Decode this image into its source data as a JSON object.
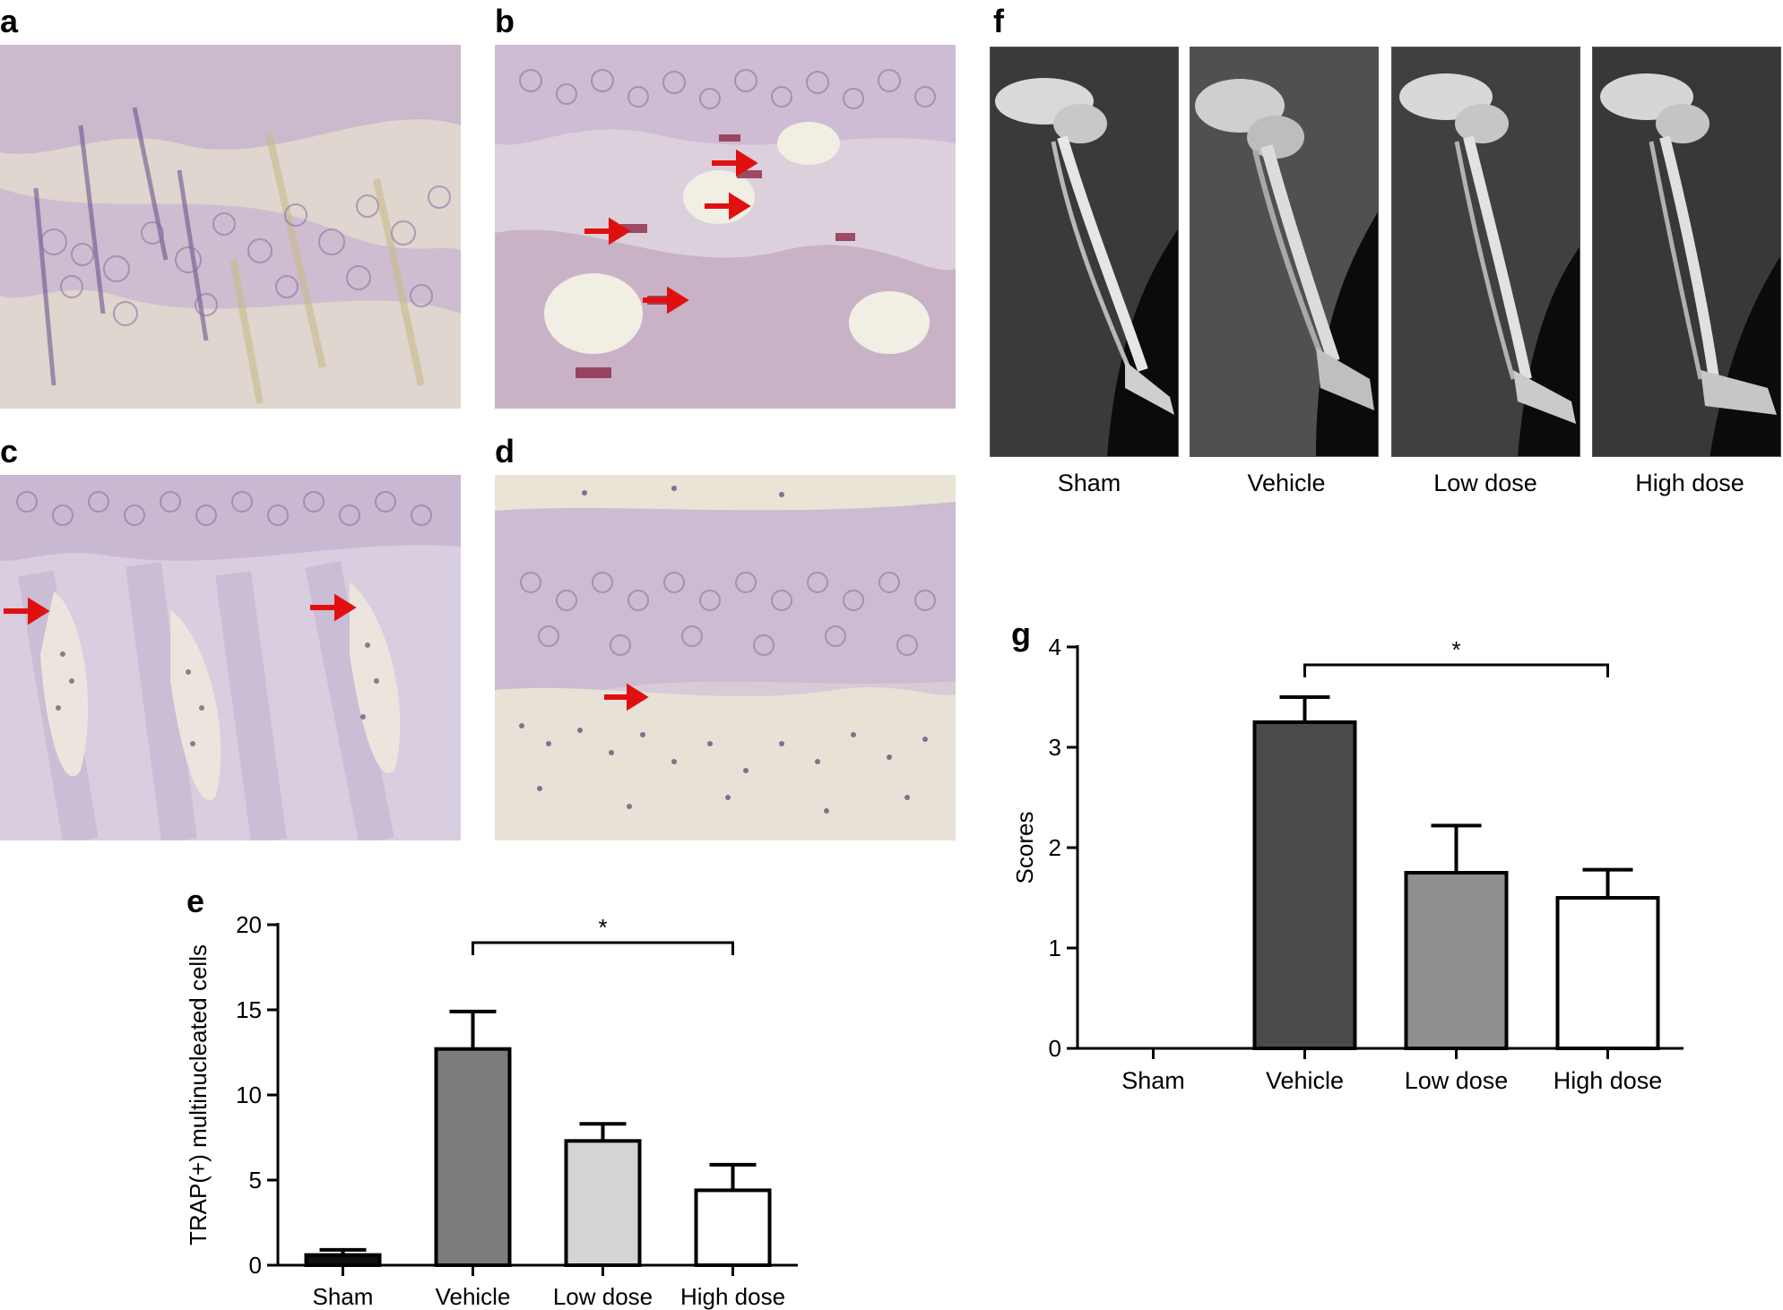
{
  "panels": {
    "a": {
      "label": "a"
    },
    "b": {
      "label": "b"
    },
    "c": {
      "label": "c"
    },
    "d": {
      "label": "d"
    },
    "e": {
      "label": "e"
    },
    "f": {
      "label": "f"
    },
    "g": {
      "label": "g"
    }
  },
  "xray_captions": [
    "Sham",
    "Vehicle",
    "Low dose",
    "High dose"
  ],
  "colors": {
    "stain_background": "#dfd2df",
    "stain_purple": "#8a6aa0",
    "arrow_red": "#e01010",
    "bar_dark": "#4a4a4a",
    "bar_mid": "#7b7b7b",
    "bar_gray": "#8f8f8f",
    "bar_light": "#d4d4d4",
    "bar_black": "#111111"
  },
  "chart_data": [
    {
      "id": "e",
      "type": "bar",
      "title": "",
      "ylabel": "TRAP(+) multinucleated cells",
      "xlabel": "",
      "categories": [
        "Sham",
        "Vehicle",
        "Low dose",
        "High dose"
      ],
      "values": [
        0.6,
        12.7,
        7.3,
        4.4
      ],
      "errors": [
        0.3,
        2.2,
        1.0,
        1.5
      ],
      "bar_colors": [
        "#111111",
        "#7b7b7b",
        "#d4d4d4",
        "#ffffff"
      ],
      "ylim": [
        0,
        20
      ],
      "yticks": [
        0,
        5,
        10,
        15,
        20
      ],
      "significance": {
        "from": "Vehicle",
        "to": "High dose",
        "label": "*"
      }
    },
    {
      "id": "g",
      "type": "bar",
      "title": "",
      "ylabel": "Scores",
      "xlabel": "",
      "categories": [
        "Sham",
        "Vehicle",
        "Low dose",
        "High dose"
      ],
      "values": [
        0,
        3.25,
        1.75,
        1.5
      ],
      "errors": [
        0,
        0.25,
        0.47,
        0.28
      ],
      "bar_colors": [
        "#ffffff",
        "#4a4a4a",
        "#8f8f8f",
        "#ffffff"
      ],
      "ylim": [
        0,
        4
      ],
      "yticks": [
        0,
        1,
        2,
        3,
        4
      ],
      "significance": {
        "from": "Vehicle",
        "to": "High dose",
        "label": "*"
      }
    }
  ]
}
